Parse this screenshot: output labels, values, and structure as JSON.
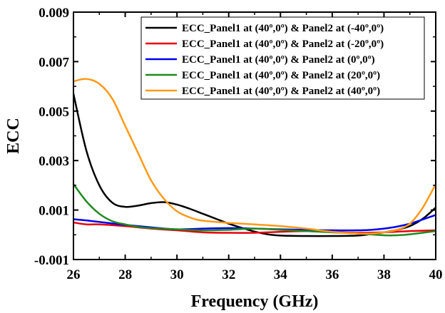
{
  "chart_data": {
    "type": "line",
    "title": "",
    "xlabel": "Frequency (GHz)",
    "ylabel": "ECC",
    "xlim": [
      26,
      40
    ],
    "ylim": [
      -0.001,
      0.009
    ],
    "x_ticks": [
      26,
      28,
      30,
      32,
      34,
      36,
      38,
      40
    ],
    "x_tick_labels": [
      "26",
      "28",
      "30",
      "32",
      "34",
      "36",
      "38",
      "40"
    ],
    "y_ticks": [
      -0.001,
      0.001,
      0.003,
      0.005,
      0.007,
      0.009
    ],
    "y_tick_labels": [
      "-0.001",
      "0.001",
      "0.003",
      "0.005",
      "0.007",
      "0.009"
    ],
    "grid": false,
    "legend_position": "top-right",
    "series": [
      {
        "name": "ECC_Panel1 at (40º,0º) & Panel2 at (-40º,0º)",
        "color": "#000000",
        "points": [
          [
            26,
            0.0057
          ],
          [
            26.5,
            0.0034
          ],
          [
            27,
            0.002
          ],
          [
            27.5,
            0.0013
          ],
          [
            28,
            0.00113
          ],
          [
            28.5,
            0.00118
          ],
          [
            29,
            0.00128
          ],
          [
            29.5,
            0.00132
          ],
          [
            30,
            0.00122
          ],
          [
            30.5,
            0.00105
          ],
          [
            31,
            0.00085
          ],
          [
            31.5,
            0.00065
          ],
          [
            32,
            0.00045
          ],
          [
            32.5,
            0.00028
          ],
          [
            33,
            0.00013
          ],
          [
            33.5,
            2e-05
          ],
          [
            34,
            -3e-05
          ],
          [
            35,
            -5e-05
          ],
          [
            36,
            -5e-05
          ],
          [
            37,
            -3e-05
          ],
          [
            37.5,
            3e-05
          ],
          [
            38,
            0.0001
          ],
          [
            38.5,
            0.0002
          ],
          [
            39,
            0.00035
          ],
          [
            39.5,
            0.00065
          ],
          [
            40,
            0.0011
          ]
        ]
      },
      {
        "name": "ECC_Panel1 at (40º,0º) & Panel2 at (-20º,0º)",
        "color": "#e8000b",
        "points": [
          [
            26,
            0.0005
          ],
          [
            26.5,
            0.00042
          ],
          [
            27,
            0.00042
          ],
          [
            28,
            0.00035
          ],
          [
            29,
            0.00025
          ],
          [
            30,
            0.00018
          ],
          [
            31,
            0.0001
          ],
          [
            32,
            8e-05
          ],
          [
            33,
            8e-05
          ],
          [
            34,
            0.00012
          ],
          [
            35,
            0.00015
          ],
          [
            36,
            0.00012
          ],
          [
            37,
            8e-05
          ],
          [
            38,
            0.0001
          ],
          [
            39,
            0.00015
          ],
          [
            40,
            0.00018
          ]
        ]
      },
      {
        "name": "ECC_Panel1 at (40º,0º) & Panel2 at (0º,0º)",
        "color": "#0000ee",
        "points": [
          [
            26,
            0.00063
          ],
          [
            26.5,
            0.00058
          ],
          [
            27,
            0.00052
          ],
          [
            28,
            0.0004
          ],
          [
            29,
            0.0003
          ],
          [
            30,
            0.00022
          ],
          [
            31,
            0.00025
          ],
          [
            32,
            0.00027
          ],
          [
            33,
            0.00025
          ],
          [
            34,
            0.00022
          ],
          [
            35,
            0.0002
          ],
          [
            36,
            0.00018
          ],
          [
            37,
            0.00018
          ],
          [
            37.5,
            0.0002
          ],
          [
            38,
            0.00025
          ],
          [
            38.5,
            0.00033
          ],
          [
            39,
            0.00045
          ],
          [
            39.5,
            0.00062
          ],
          [
            40,
            0.0008
          ]
        ]
      },
      {
        "name": "ECC_Panel1 at (40º,0º) & Panel2 at (20º,0º)",
        "color": "#1f8a1f",
        "points": [
          [
            26,
            0.00205
          ],
          [
            26.5,
            0.00135
          ],
          [
            27,
            0.00085
          ],
          [
            27.5,
            0.00055
          ],
          [
            28,
            0.00042
          ],
          [
            28.5,
            0.00032
          ],
          [
            29,
            0.00027
          ],
          [
            30,
            0.00022
          ],
          [
            31,
            0.00018
          ],
          [
            32,
            0.0002
          ],
          [
            33,
            0.00025
          ],
          [
            34,
            0.0002
          ],
          [
            35,
            0.00015
          ],
          [
            36,
            0.0001
          ],
          [
            37,
            5e-05
          ],
          [
            38,
            -2e-05
          ],
          [
            38.5,
            -2e-05
          ],
          [
            39,
            2e-05
          ],
          [
            40,
            0.00015
          ]
        ]
      },
      {
        "name": "ECC_Panel1 at (40º,0º) & Panel2 at (40º,0º)",
        "color": "#ff9a1a",
        "points": [
          [
            26,
            0.0062
          ],
          [
            26.5,
            0.0063
          ],
          [
            27,
            0.0061
          ],
          [
            27.5,
            0.0055
          ],
          [
            28,
            0.0044
          ],
          [
            28.5,
            0.0033
          ],
          [
            29,
            0.0022
          ],
          [
            29.5,
            0.00145
          ],
          [
            30,
            0.00095
          ],
          [
            30.5,
            0.0007
          ],
          [
            31,
            0.00057
          ],
          [
            32,
            0.00048
          ],
          [
            33,
            0.00042
          ],
          [
            34,
            0.00035
          ],
          [
            35,
            0.00025
          ],
          [
            36,
            0.00012
          ],
          [
            37,
            5e-05
          ],
          [
            37.5,
            5e-05
          ],
          [
            38,
            0.0001
          ],
          [
            38.5,
            0.0002
          ],
          [
            39,
            0.00045
          ],
          [
            39.5,
            0.0011
          ],
          [
            40,
            0.00205
          ]
        ]
      }
    ]
  }
}
